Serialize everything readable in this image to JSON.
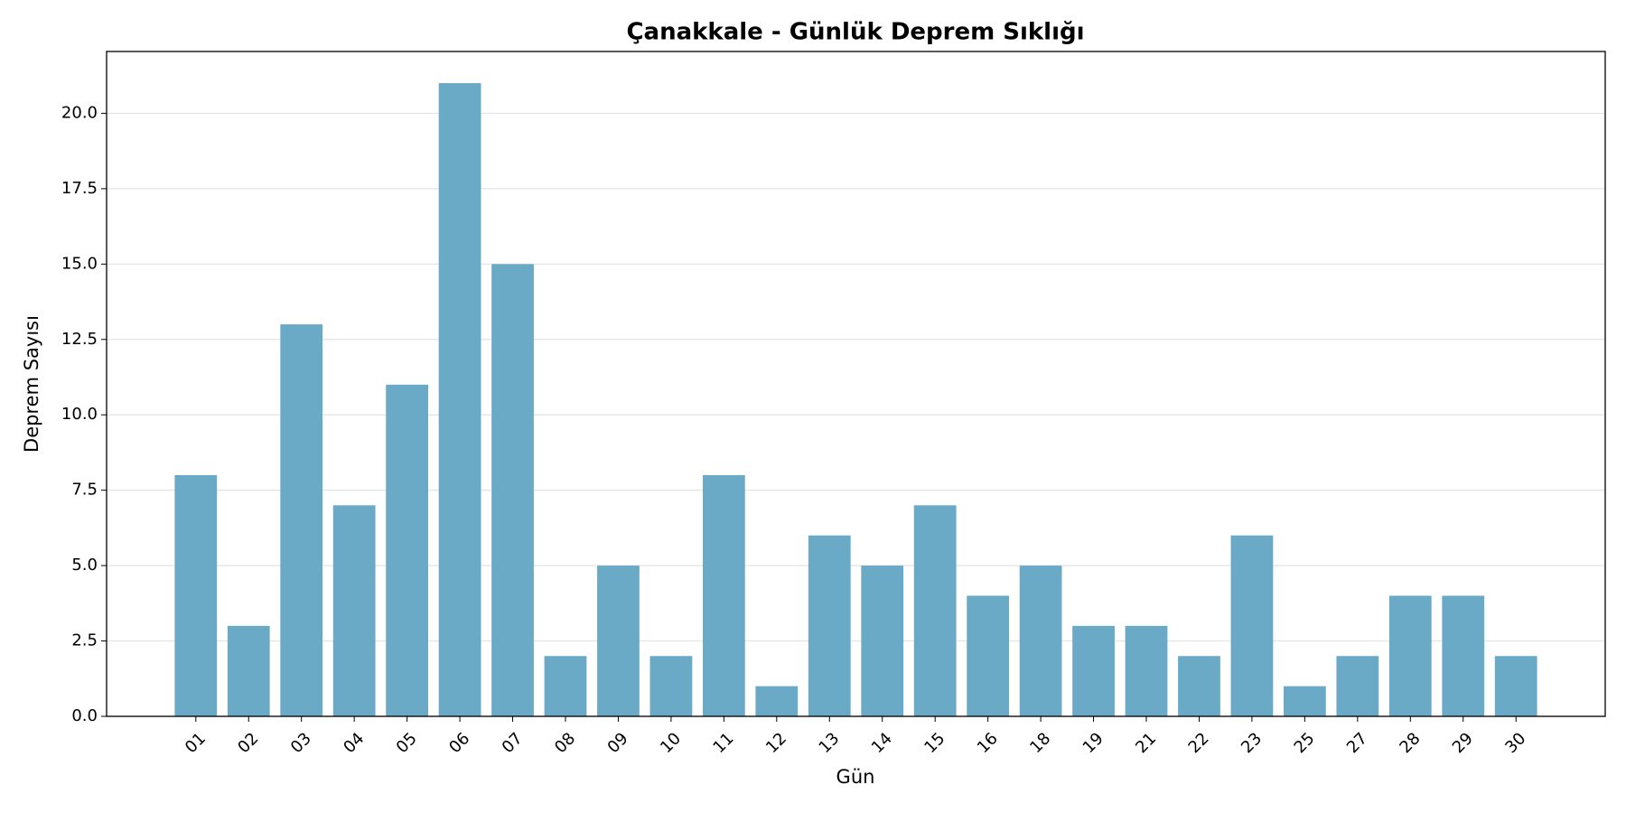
{
  "chart_data": {
    "type": "bar",
    "title": "Çanakkale - Günlük Deprem Sıklığı",
    "x_label": "Gün",
    "y_label": "Deprem Sayısı",
    "categories": [
      "01",
      "02",
      "03",
      "04",
      "05",
      "06",
      "07",
      "08",
      "09",
      "10",
      "11",
      "12",
      "13",
      "14",
      "15",
      "16",
      "18",
      "19",
      "21",
      "22",
      "23",
      "25",
      "27",
      "28",
      "29",
      "30"
    ],
    "values": [
      8,
      3,
      13,
      7,
      11,
      21,
      15,
      2,
      5,
      2,
      8,
      1,
      6,
      5,
      7,
      4,
      5,
      3,
      3,
      2,
      6,
      1,
      2,
      4,
      4,
      2
    ],
    "color": "#6aaac6",
    "ylim": [
      0,
      22.05
    ],
    "yticks": [
      {
        "value": 0,
        "label": "0.0"
      },
      {
        "value": 2.5,
        "label": "2.5"
      },
      {
        "value": 5,
        "label": "5.0"
      },
      {
        "value": 7.5,
        "label": "7.5"
      },
      {
        "value": 10,
        "label": "10.0"
      },
      {
        "value": 12.5,
        "label": "12.5"
      },
      {
        "value": 15,
        "label": "15.0"
      },
      {
        "value": 17.5,
        "label": "17.5"
      },
      {
        "value": 20,
        "label": "20.0"
      }
    ],
    "grid": true
  }
}
